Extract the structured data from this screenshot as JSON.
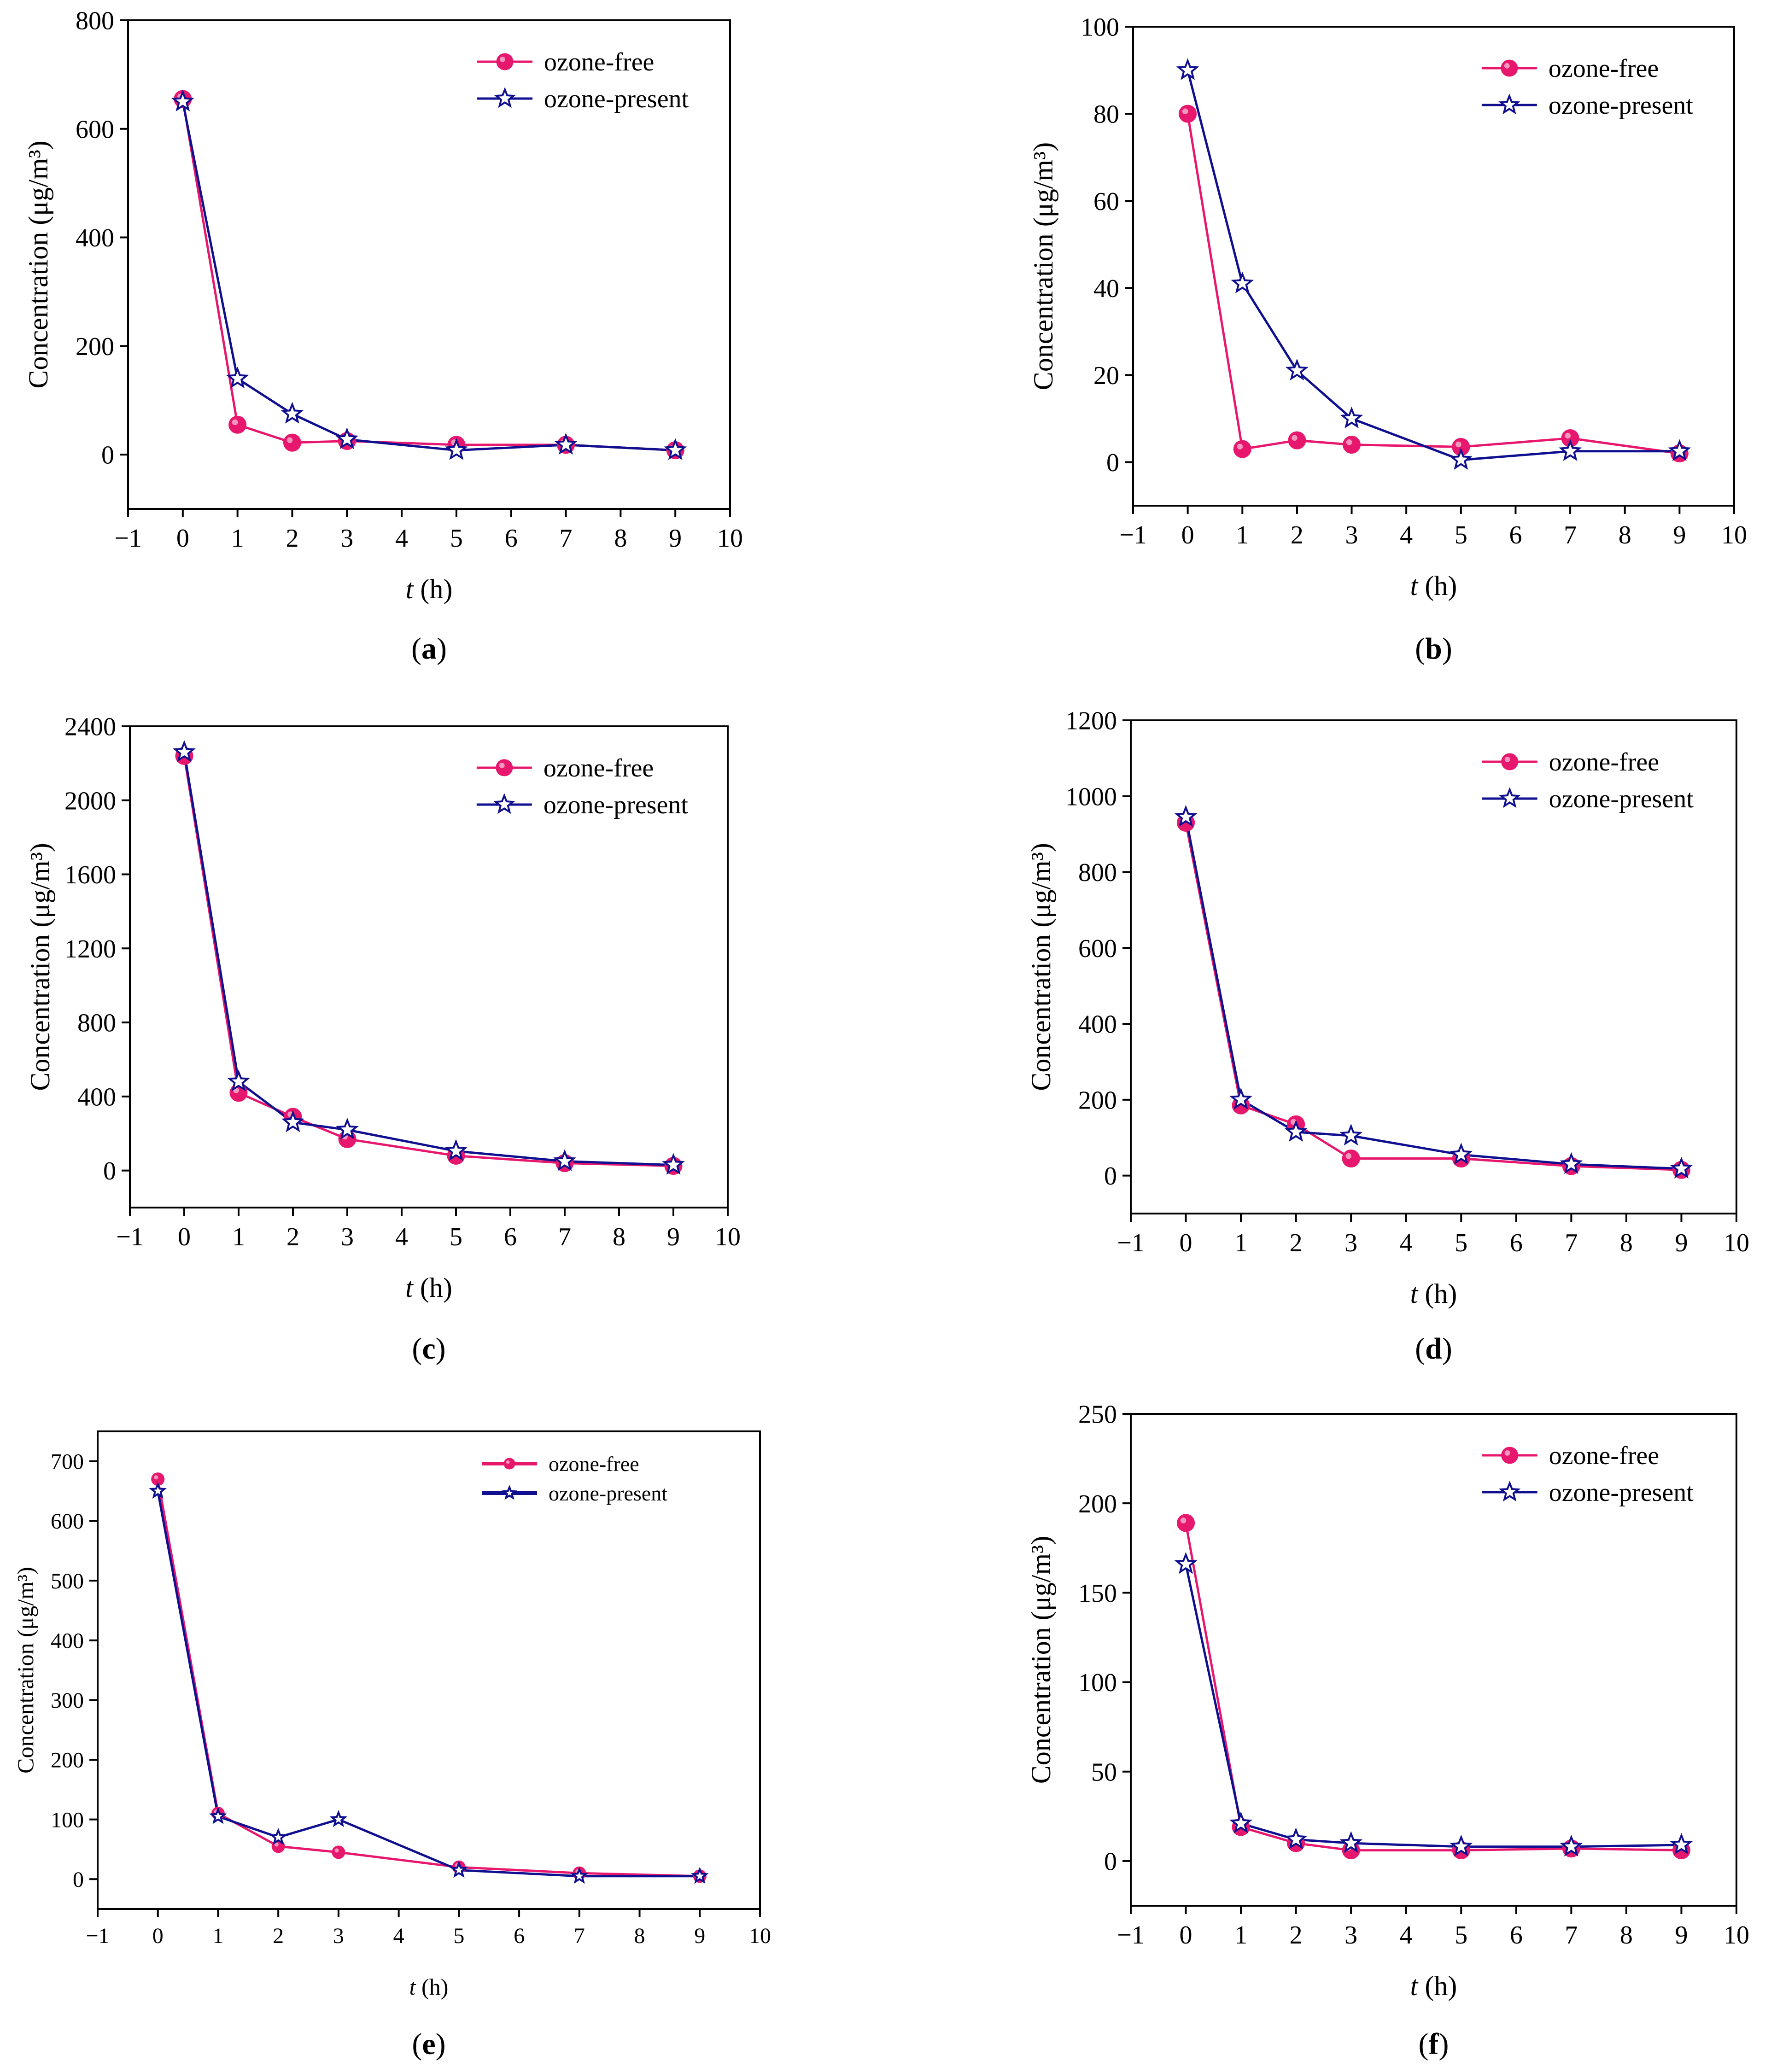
{
  "figure": {
    "series_styles": [
      {
        "name": "ozone-free",
        "color": "#e8176e",
        "marker": "circle"
      },
      {
        "name": "ozone-present",
        "color": "#0f0f8f",
        "marker": "star"
      }
    ]
  },
  "chart_data": [
    {
      "type": "line",
      "panel_label": "a",
      "xlabel": "t (h)",
      "ylabel": "Concentration (μg/m³)",
      "xlim": [
        -1,
        10
      ],
      "ylim": [
        -100,
        800
      ],
      "xticks": [
        -1,
        0,
        1,
        2,
        3,
        4,
        5,
        6,
        7,
        8,
        9,
        10
      ],
      "yticks": [
        0,
        200,
        400,
        600,
        800
      ],
      "legend_position": "top-right",
      "x": [
        0,
        1,
        2,
        3,
        5,
        7,
        9
      ],
      "series": [
        {
          "name": "ozone-free",
          "values": [
            655,
            55,
            22,
            25,
            18,
            18,
            8
          ]
        },
        {
          "name": "ozone-present",
          "values": [
            650,
            140,
            75,
            28,
            8,
            18,
            8
          ]
        }
      ]
    },
    {
      "type": "line",
      "panel_label": "b",
      "xlabel": "t (h)",
      "ylabel": "Concentration (μg/m³)",
      "xlim": [
        -1,
        10
      ],
      "ylim": [
        -10,
        100
      ],
      "xticks": [
        -1,
        0,
        1,
        2,
        3,
        4,
        5,
        6,
        7,
        8,
        9,
        10
      ],
      "yticks": [
        0,
        20,
        40,
        60,
        80,
        100
      ],
      "legend_position": "top-right",
      "x": [
        0,
        1,
        2,
        3,
        5,
        7,
        9
      ],
      "series": [
        {
          "name": "ozone-free",
          "values": [
            80,
            3,
            5,
            4,
            3.5,
            5.5,
            2
          ]
        },
        {
          "name": "ozone-present",
          "values": [
            90,
            41,
            21,
            10,
            0.5,
            2.5,
            2.5
          ]
        }
      ]
    },
    {
      "type": "line",
      "panel_label": "c",
      "xlabel": "t (h)",
      "ylabel": "Concentration (μg/m³)",
      "xlim": [
        -1,
        10
      ],
      "ylim": [
        -200,
        2400
      ],
      "xticks": [
        -1,
        0,
        1,
        2,
        3,
        4,
        5,
        6,
        7,
        8,
        9,
        10
      ],
      "yticks": [
        0,
        400,
        800,
        1200,
        1600,
        2000,
        2400
      ],
      "legend_position": "top-right",
      "x": [
        0,
        1,
        2,
        3,
        5,
        7,
        9
      ],
      "series": [
        {
          "name": "ozone-free",
          "values": [
            2240,
            420,
            290,
            170,
            80,
            40,
            25
          ]
        },
        {
          "name": "ozone-present",
          "values": [
            2260,
            480,
            260,
            220,
            105,
            50,
            30
          ]
        }
      ]
    },
    {
      "type": "line",
      "panel_label": "d",
      "xlabel": "t (h)",
      "ylabel": "Concentration (μg/m³)",
      "xlim": [
        -1,
        10
      ],
      "ylim": [
        -100,
        1200
      ],
      "xticks": [
        -1,
        0,
        1,
        2,
        3,
        4,
        5,
        6,
        7,
        8,
        9,
        10
      ],
      "yticks": [
        0,
        200,
        400,
        600,
        800,
        1000,
        1200
      ],
      "legend_position": "top-right",
      "x": [
        0,
        1,
        2,
        3,
        5,
        7,
        9
      ],
      "series": [
        {
          "name": "ozone-free",
          "values": [
            930,
            185,
            135,
            45,
            45,
            25,
            15
          ]
        },
        {
          "name": "ozone-present",
          "values": [
            945,
            200,
            115,
            105,
            55,
            30,
            18
          ]
        }
      ]
    },
    {
      "type": "line",
      "panel_label": "e",
      "xlabel": "t (h)",
      "ylabel": "Concentration (μg/m³)",
      "xlim": [
        -1,
        10
      ],
      "ylim": [
        -50,
        750
      ],
      "xticks": [
        -1,
        0,
        1,
        2,
        3,
        4,
        5,
        6,
        7,
        8,
        9,
        10
      ],
      "yticks": [
        0,
        100,
        200,
        300,
        400,
        500,
        600,
        700
      ],
      "legend_position": "top-right",
      "x": [
        0,
        1,
        2,
        3,
        5,
        7,
        9
      ],
      "series": [
        {
          "name": "ozone-free",
          "values": [
            670,
            110,
            55,
            45,
            20,
            10,
            5
          ]
        },
        {
          "name": "ozone-present",
          "values": [
            650,
            105,
            70,
            100,
            15,
            5,
            5
          ]
        }
      ]
    },
    {
      "type": "line",
      "panel_label": "f",
      "xlabel": "t (h)",
      "ylabel": "Concentration (μg/m³)",
      "xlim": [
        -1,
        10
      ],
      "ylim": [
        -25,
        250
      ],
      "xticks": [
        -1,
        0,
        1,
        2,
        3,
        4,
        5,
        6,
        7,
        8,
        9,
        10
      ],
      "yticks": [
        0,
        50,
        100,
        150,
        200,
        250
      ],
      "legend_position": "top-right",
      "x": [
        0,
        1,
        2,
        3,
        5,
        7,
        9
      ],
      "series": [
        {
          "name": "ozone-free",
          "values": [
            189,
            19,
            10,
            6,
            6,
            7,
            6
          ]
        },
        {
          "name": "ozone-present",
          "values": [
            166,
            21,
            12,
            10,
            8,
            8,
            9
          ]
        }
      ]
    }
  ]
}
